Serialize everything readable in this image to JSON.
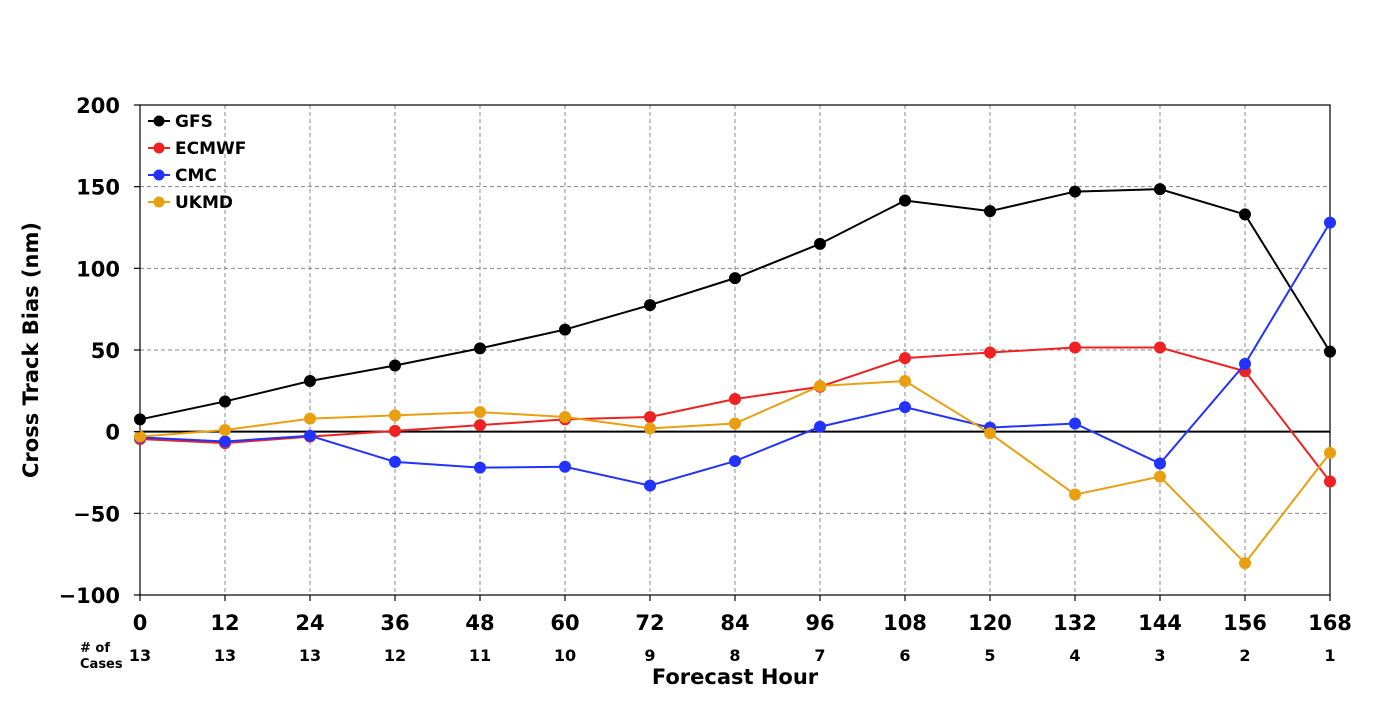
{
  "chart_data": {
    "type": "line",
    "title": "",
    "xlabel": "Forecast Hour",
    "ylabel": "Cross Track Bias (nm)",
    "x": [
      0,
      12,
      24,
      36,
      48,
      60,
      72,
      84,
      96,
      108,
      120,
      132,
      144,
      156,
      168
    ],
    "xlim": [
      0,
      168
    ],
    "ylim": [
      -100,
      200
    ],
    "yticks": [
      -100,
      -50,
      0,
      50,
      100,
      150,
      200
    ],
    "ytick_labels": [
      "−100",
      "−50",
      "0",
      "50",
      "100",
      "150",
      "200"
    ],
    "grid": true,
    "legend_position": "top-left",
    "zero_line": true,
    "cases_label": "# of Cases",
    "cases": [
      13,
      13,
      13,
      12,
      11,
      10,
      9,
      8,
      7,
      6,
      5,
      4,
      3,
      2,
      1
    ],
    "series": [
      {
        "name": "GFS",
        "color": "#000000",
        "values": [
          7.5,
          18.5,
          31,
          40.5,
          51,
          62.5,
          77.5,
          94,
          115,
          141.5,
          135,
          147,
          148.5,
          133,
          49
        ]
      },
      {
        "name": "ECMWF",
        "color": "#ee2222",
        "values": [
          -4.5,
          -7,
          -3,
          0.5,
          4,
          7.5,
          9,
          20,
          27.5,
          45,
          48.5,
          51.5,
          51.5,
          37,
          -30.5
        ]
      },
      {
        "name": "CMC",
        "color": "#2233ff",
        "values": [
          -3.5,
          -6,
          -2.5,
          -18.5,
          -22,
          -21.5,
          -33,
          -18,
          3,
          15,
          2.5,
          5,
          -19.5,
          41.5,
          128
        ]
      },
      {
        "name": "UKMD",
        "color": "#e8a010",
        "values": [
          -3,
          1,
          8,
          10,
          12,
          9,
          2,
          5,
          28,
          31,
          -1,
          -38.5,
          -27.5,
          -80.5,
          -13
        ]
      }
    ]
  }
}
